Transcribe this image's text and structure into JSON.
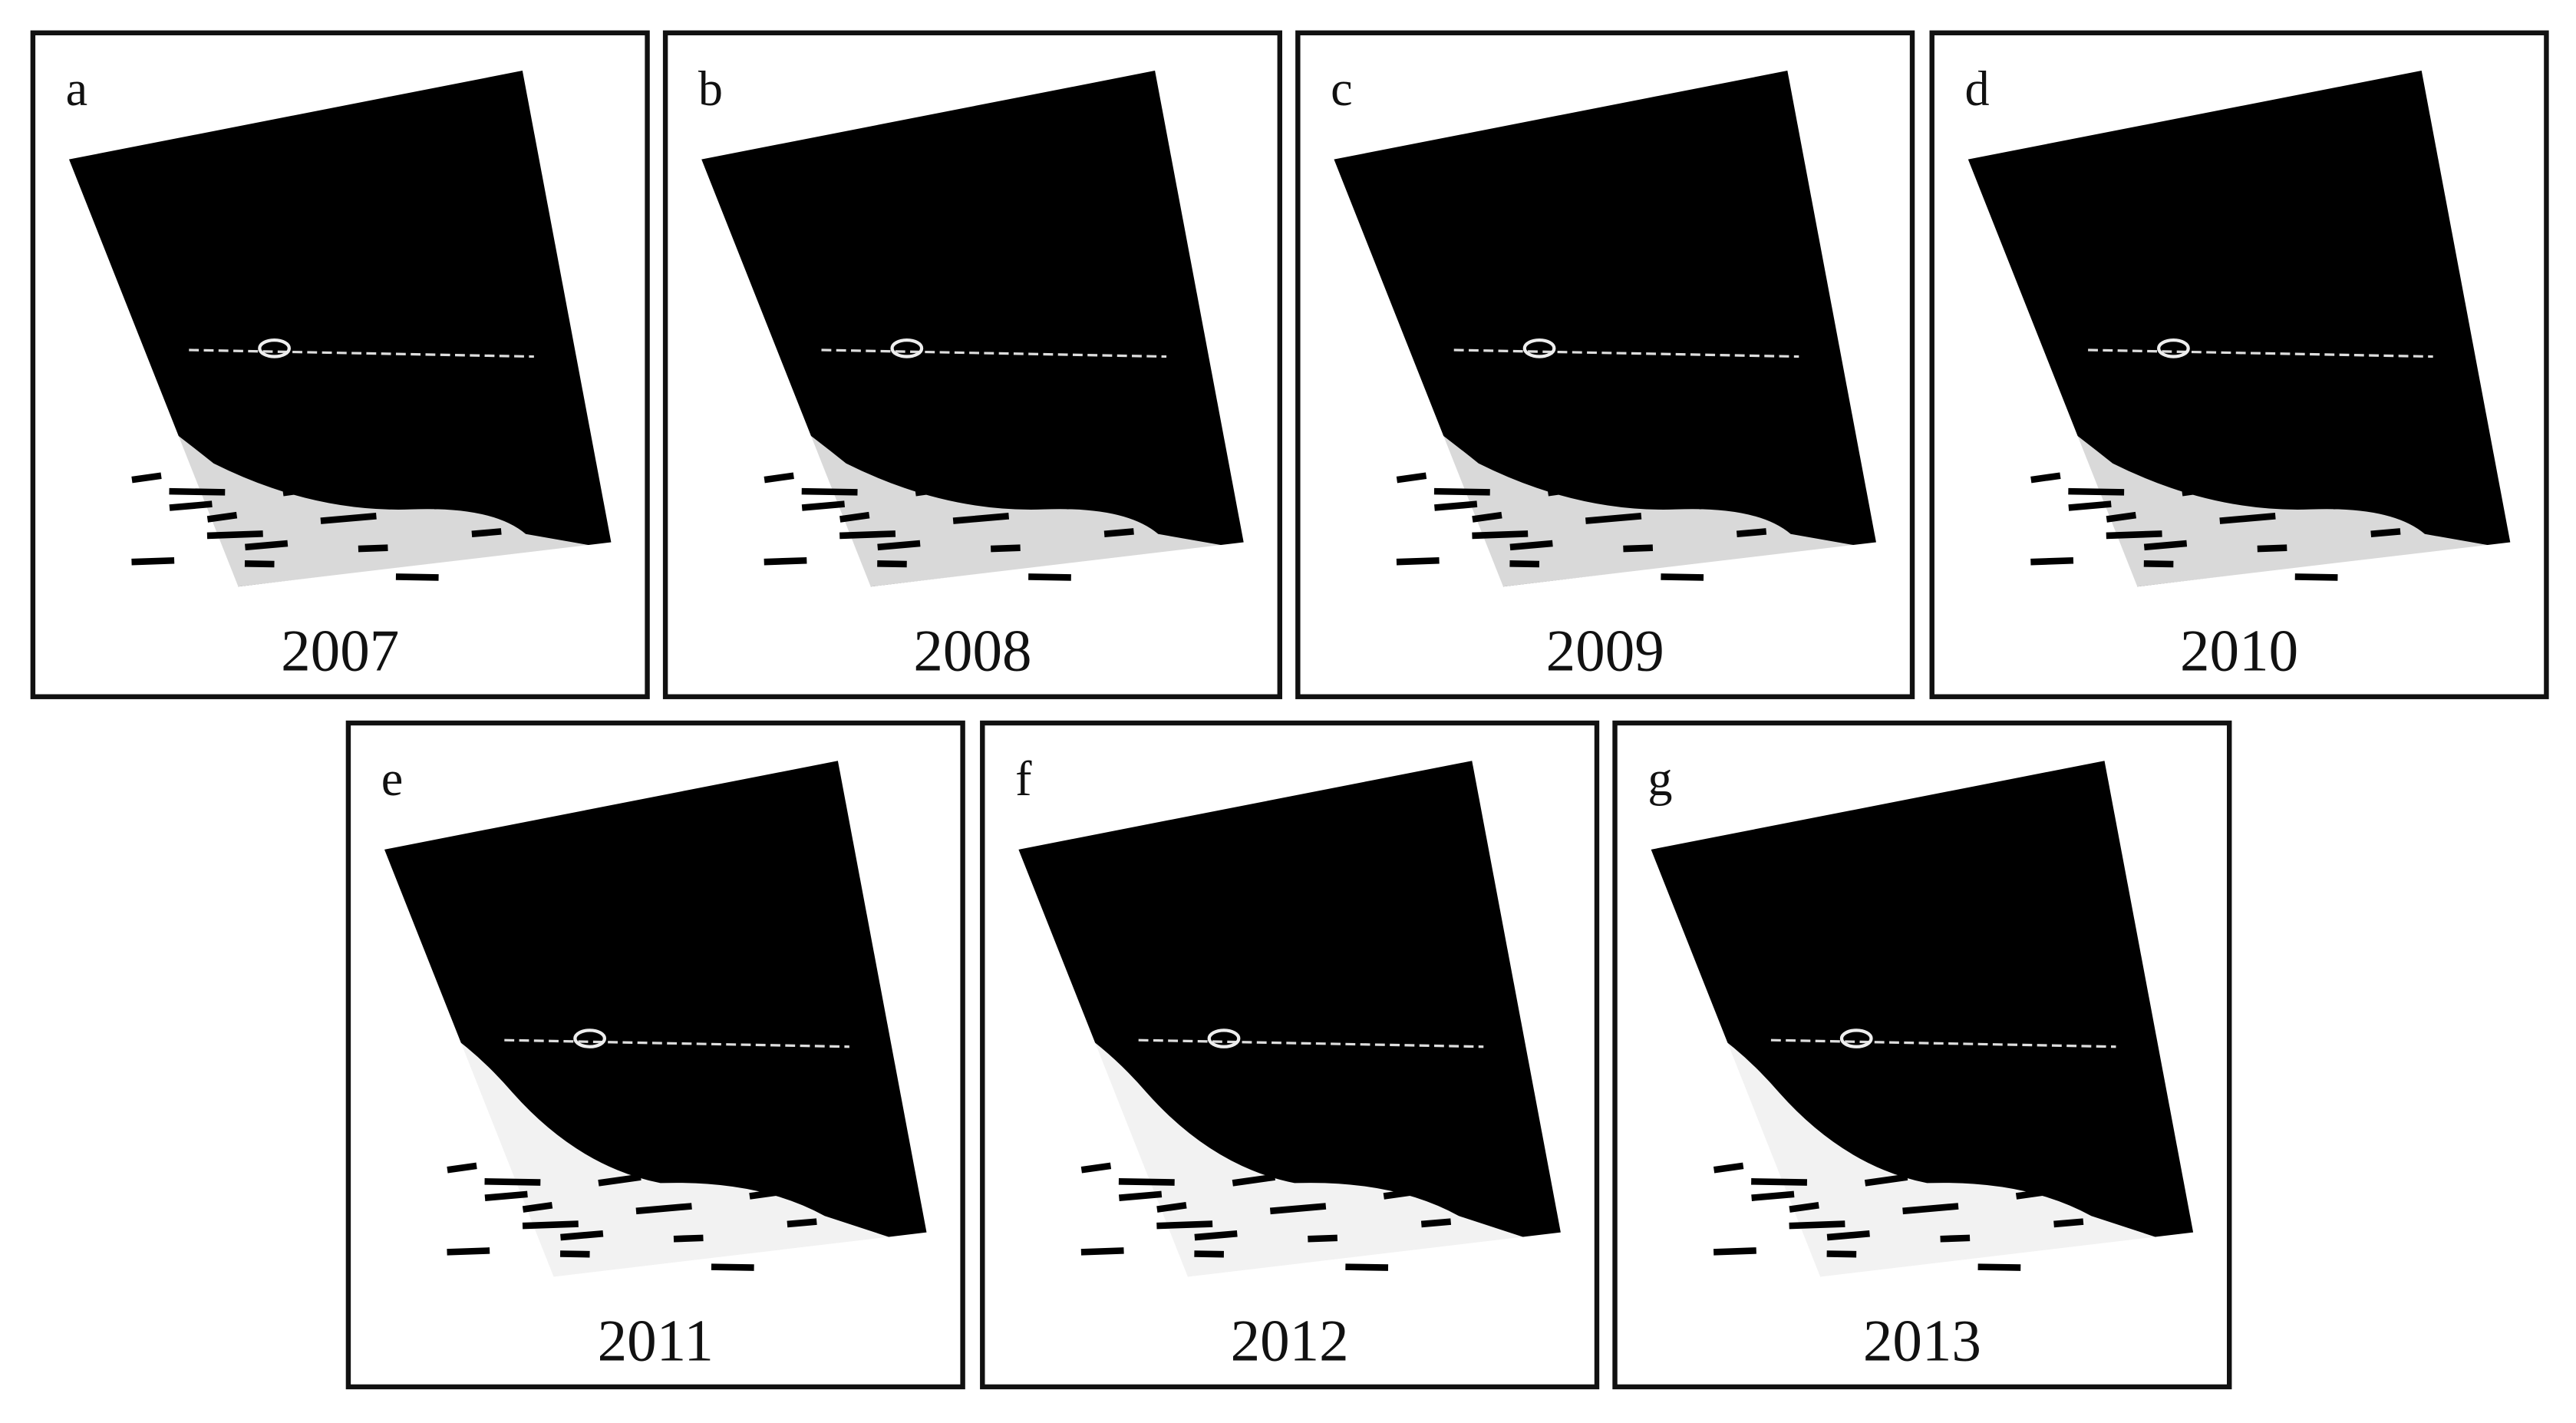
{
  "panels": [
    {
      "letter": "a",
      "year": "2007"
    },
    {
      "letter": "b",
      "year": "2008"
    },
    {
      "letter": "c",
      "year": "2009"
    },
    {
      "letter": "d",
      "year": "2010"
    },
    {
      "letter": "e",
      "year": "2011"
    },
    {
      "letter": "f",
      "year": "2012"
    },
    {
      "letter": "g",
      "year": "2013"
    }
  ]
}
